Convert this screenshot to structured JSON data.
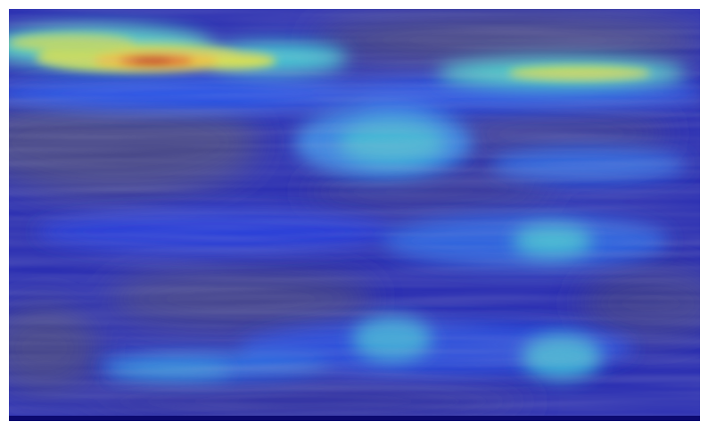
{
  "image": {
    "kind": "heatmap-overlay-on-spectrogram",
    "colormap": [
      "#1c1aa8",
      "#2f5fe0",
      "#3fc4d8",
      "#e8e04a",
      "#d42a1a"
    ],
    "base_color": "#3a3a9c"
  }
}
